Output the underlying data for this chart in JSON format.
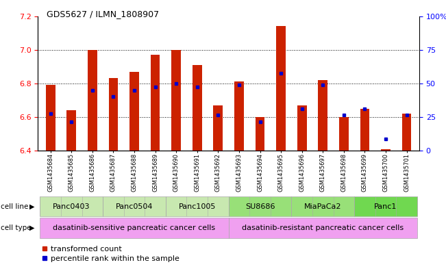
{
  "title": "GDS5627 / ILMN_1808907",
  "samples": [
    "GSM1435684",
    "GSM1435685",
    "GSM1435686",
    "GSM1435687",
    "GSM1435688",
    "GSM1435689",
    "GSM1435690",
    "GSM1435691",
    "GSM1435692",
    "GSM1435693",
    "GSM1435694",
    "GSM1435695",
    "GSM1435696",
    "GSM1435697",
    "GSM1435698",
    "GSM1435699",
    "GSM1435700",
    "GSM1435701"
  ],
  "red_values": [
    6.79,
    6.64,
    7.0,
    6.83,
    6.87,
    6.97,
    7.0,
    6.91,
    6.67,
    6.81,
    6.6,
    7.14,
    6.67,
    6.82,
    6.6,
    6.65,
    6.41,
    6.62
  ],
  "blue_values": [
    6.62,
    6.57,
    6.76,
    6.72,
    6.76,
    6.78,
    6.8,
    6.78,
    6.61,
    6.79,
    6.57,
    6.86,
    6.65,
    6.79,
    6.61,
    6.65,
    6.47,
    6.61
  ],
  "ylim_left": [
    6.4,
    7.2
  ],
  "ylim_right": [
    0,
    100
  ],
  "yticks_left": [
    6.4,
    6.6,
    6.8,
    7.0,
    7.2
  ],
  "yticks_right": [
    0,
    25,
    50,
    75,
    100
  ],
  "ytick_labels_right": [
    "0",
    "25",
    "50",
    "75",
    "100%"
  ],
  "cell_lines": [
    {
      "label": "Panc0403",
      "start": 0,
      "end": 3
    },
    {
      "label": "Panc0504",
      "start": 3,
      "end": 6
    },
    {
      "label": "Panc1005",
      "start": 6,
      "end": 9
    },
    {
      "label": "SU8686",
      "start": 9,
      "end": 12
    },
    {
      "label": "MiaPaCa2",
      "start": 12,
      "end": 15
    },
    {
      "label": "Panc1",
      "start": 15,
      "end": 18
    }
  ],
  "cell_line_colors": [
    "#c8e8b0",
    "#c8e8b0",
    "#c8e8b0",
    "#98e078",
    "#98e078",
    "#70d850"
  ],
  "cell_types": [
    {
      "label": "dasatinib-sensitive pancreatic cancer cells",
      "start": 0,
      "end": 9,
      "color": "#f0a0f0"
    },
    {
      "label": "dasatinib-resistant pancreatic cancer cells",
      "start": 9,
      "end": 18,
      "color": "#f0a0f0"
    }
  ],
  "bar_color": "#cc2200",
  "marker_color": "#0000cc",
  "label_row1": "cell line",
  "label_row2": "cell type",
  "legend_red": "transformed count",
  "legend_blue": "percentile rank within the sample",
  "bar_width": 0.45,
  "baseline": 6.4,
  "xlim": [
    -0.6,
    17.6
  ]
}
